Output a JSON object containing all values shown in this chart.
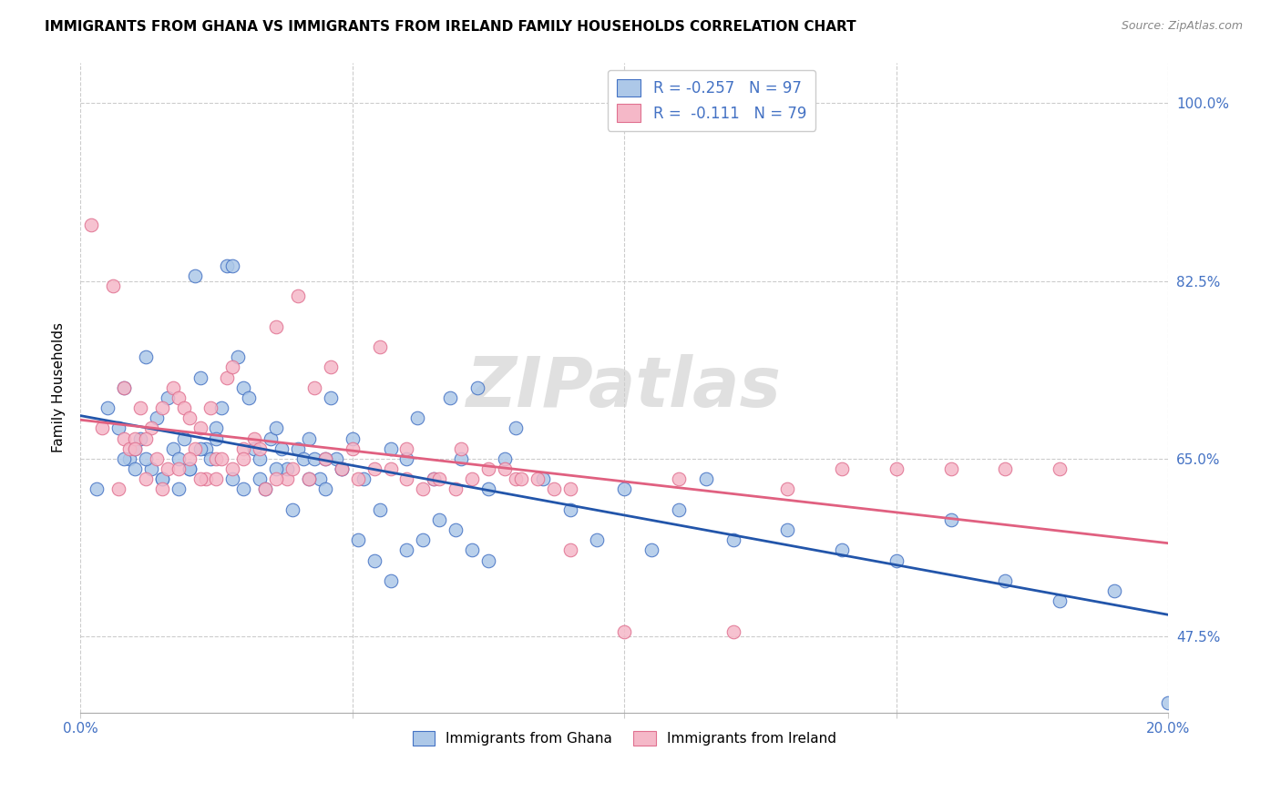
{
  "title": "IMMIGRANTS FROM GHANA VS IMMIGRANTS FROM IRELAND FAMILY HOUSEHOLDS CORRELATION CHART",
  "source": "Source: ZipAtlas.com",
  "ylabel": "Family Households",
  "ytick_labels": [
    "47.5%",
    "65.0%",
    "82.5%",
    "100.0%"
  ],
  "ytick_values": [
    0.475,
    0.65,
    0.825,
    1.0
  ],
  "xlim": [
    0.0,
    0.2
  ],
  "ylim": [
    0.4,
    1.04
  ],
  "ghana_face_color": "#adc8e8",
  "ireland_face_color": "#f5b8c8",
  "ghana_edge_color": "#4472c4",
  "ireland_edge_color": "#e07090",
  "ghana_line_color": "#2255aa",
  "ireland_line_color": "#e06080",
  "ghana_R": -0.257,
  "ghana_N": 97,
  "ireland_R": -0.111,
  "ireland_N": 79,
  "watermark": "ZIPatlas",
  "legend_text_color": "#4472c4",
  "right_tick_color": "#4472c4",
  "ghana_scatter_x": [
    0.003,
    0.005,
    0.007,
    0.008,
    0.009,
    0.01,
    0.011,
    0.012,
    0.013,
    0.014,
    0.015,
    0.016,
    0.017,
    0.018,
    0.019,
    0.02,
    0.021,
    0.022,
    0.023,
    0.024,
    0.025,
    0.026,
    0.027,
    0.028,
    0.029,
    0.03,
    0.031,
    0.032,
    0.033,
    0.034,
    0.035,
    0.036,
    0.037,
    0.038,
    0.04,
    0.041,
    0.042,
    0.043,
    0.044,
    0.045,
    0.046,
    0.047,
    0.048,
    0.05,
    0.052,
    0.055,
    0.057,
    0.06,
    0.062,
    0.065,
    0.068,
    0.07,
    0.073,
    0.075,
    0.078,
    0.08,
    0.085,
    0.09,
    0.095,
    0.1,
    0.105,
    0.11,
    0.115,
    0.12,
    0.13,
    0.14,
    0.15,
    0.16,
    0.17,
    0.18,
    0.19,
    0.2,
    0.008,
    0.01,
    0.012,
    0.015,
    0.018,
    0.02,
    0.022,
    0.025,
    0.028,
    0.03,
    0.033,
    0.036,
    0.039,
    0.042,
    0.045,
    0.048,
    0.051,
    0.054,
    0.057,
    0.06,
    0.063,
    0.066,
    0.069,
    0.072,
    0.075
  ],
  "ghana_scatter_y": [
    0.62,
    0.7,
    0.68,
    0.72,
    0.65,
    0.66,
    0.67,
    0.75,
    0.64,
    0.69,
    0.63,
    0.71,
    0.66,
    0.65,
    0.67,
    0.64,
    0.83,
    0.73,
    0.66,
    0.65,
    0.68,
    0.7,
    0.84,
    0.84,
    0.75,
    0.72,
    0.71,
    0.66,
    0.63,
    0.62,
    0.67,
    0.68,
    0.66,
    0.64,
    0.66,
    0.65,
    0.67,
    0.65,
    0.63,
    0.62,
    0.71,
    0.65,
    0.64,
    0.67,
    0.63,
    0.6,
    0.66,
    0.65,
    0.69,
    0.63,
    0.71,
    0.65,
    0.72,
    0.62,
    0.65,
    0.68,
    0.63,
    0.6,
    0.57,
    0.62,
    0.56,
    0.6,
    0.63,
    0.57,
    0.58,
    0.56,
    0.55,
    0.59,
    0.53,
    0.51,
    0.52,
    0.41,
    0.65,
    0.64,
    0.65,
    0.63,
    0.62,
    0.64,
    0.66,
    0.67,
    0.63,
    0.62,
    0.65,
    0.64,
    0.6,
    0.63,
    0.65,
    0.64,
    0.57,
    0.55,
    0.53,
    0.56,
    0.57,
    0.59,
    0.58,
    0.56,
    0.55
  ],
  "ireland_scatter_x": [
    0.002,
    0.004,
    0.006,
    0.007,
    0.008,
    0.009,
    0.01,
    0.011,
    0.012,
    0.013,
    0.014,
    0.015,
    0.016,
    0.017,
    0.018,
    0.019,
    0.02,
    0.021,
    0.022,
    0.023,
    0.024,
    0.025,
    0.026,
    0.027,
    0.028,
    0.03,
    0.032,
    0.034,
    0.036,
    0.038,
    0.04,
    0.043,
    0.046,
    0.05,
    0.055,
    0.06,
    0.065,
    0.07,
    0.08,
    0.09,
    0.1,
    0.11,
    0.12,
    0.13,
    0.14,
    0.15,
    0.16,
    0.17,
    0.18,
    0.008,
    0.01,
    0.012,
    0.015,
    0.018,
    0.02,
    0.022,
    0.025,
    0.028,
    0.03,
    0.033,
    0.036,
    0.039,
    0.042,
    0.045,
    0.048,
    0.051,
    0.054,
    0.057,
    0.06,
    0.063,
    0.066,
    0.069,
    0.072,
    0.075,
    0.078,
    0.081,
    0.084,
    0.087,
    0.09
  ],
  "ireland_scatter_y": [
    0.88,
    0.68,
    0.82,
    0.62,
    0.67,
    0.66,
    0.67,
    0.7,
    0.63,
    0.68,
    0.65,
    0.7,
    0.64,
    0.72,
    0.71,
    0.7,
    0.69,
    0.66,
    0.68,
    0.63,
    0.7,
    0.65,
    0.65,
    0.73,
    0.74,
    0.66,
    0.67,
    0.62,
    0.78,
    0.63,
    0.81,
    0.72,
    0.74,
    0.66,
    0.76,
    0.66,
    0.63,
    0.66,
    0.63,
    0.56,
    0.48,
    0.63,
    0.48,
    0.62,
    0.64,
    0.64,
    0.64,
    0.64,
    0.64,
    0.72,
    0.66,
    0.67,
    0.62,
    0.64,
    0.65,
    0.63,
    0.63,
    0.64,
    0.65,
    0.66,
    0.63,
    0.64,
    0.63,
    0.65,
    0.64,
    0.63,
    0.64,
    0.64,
    0.63,
    0.62,
    0.63,
    0.62,
    0.63,
    0.64,
    0.64,
    0.63,
    0.63,
    0.62,
    0.62
  ]
}
